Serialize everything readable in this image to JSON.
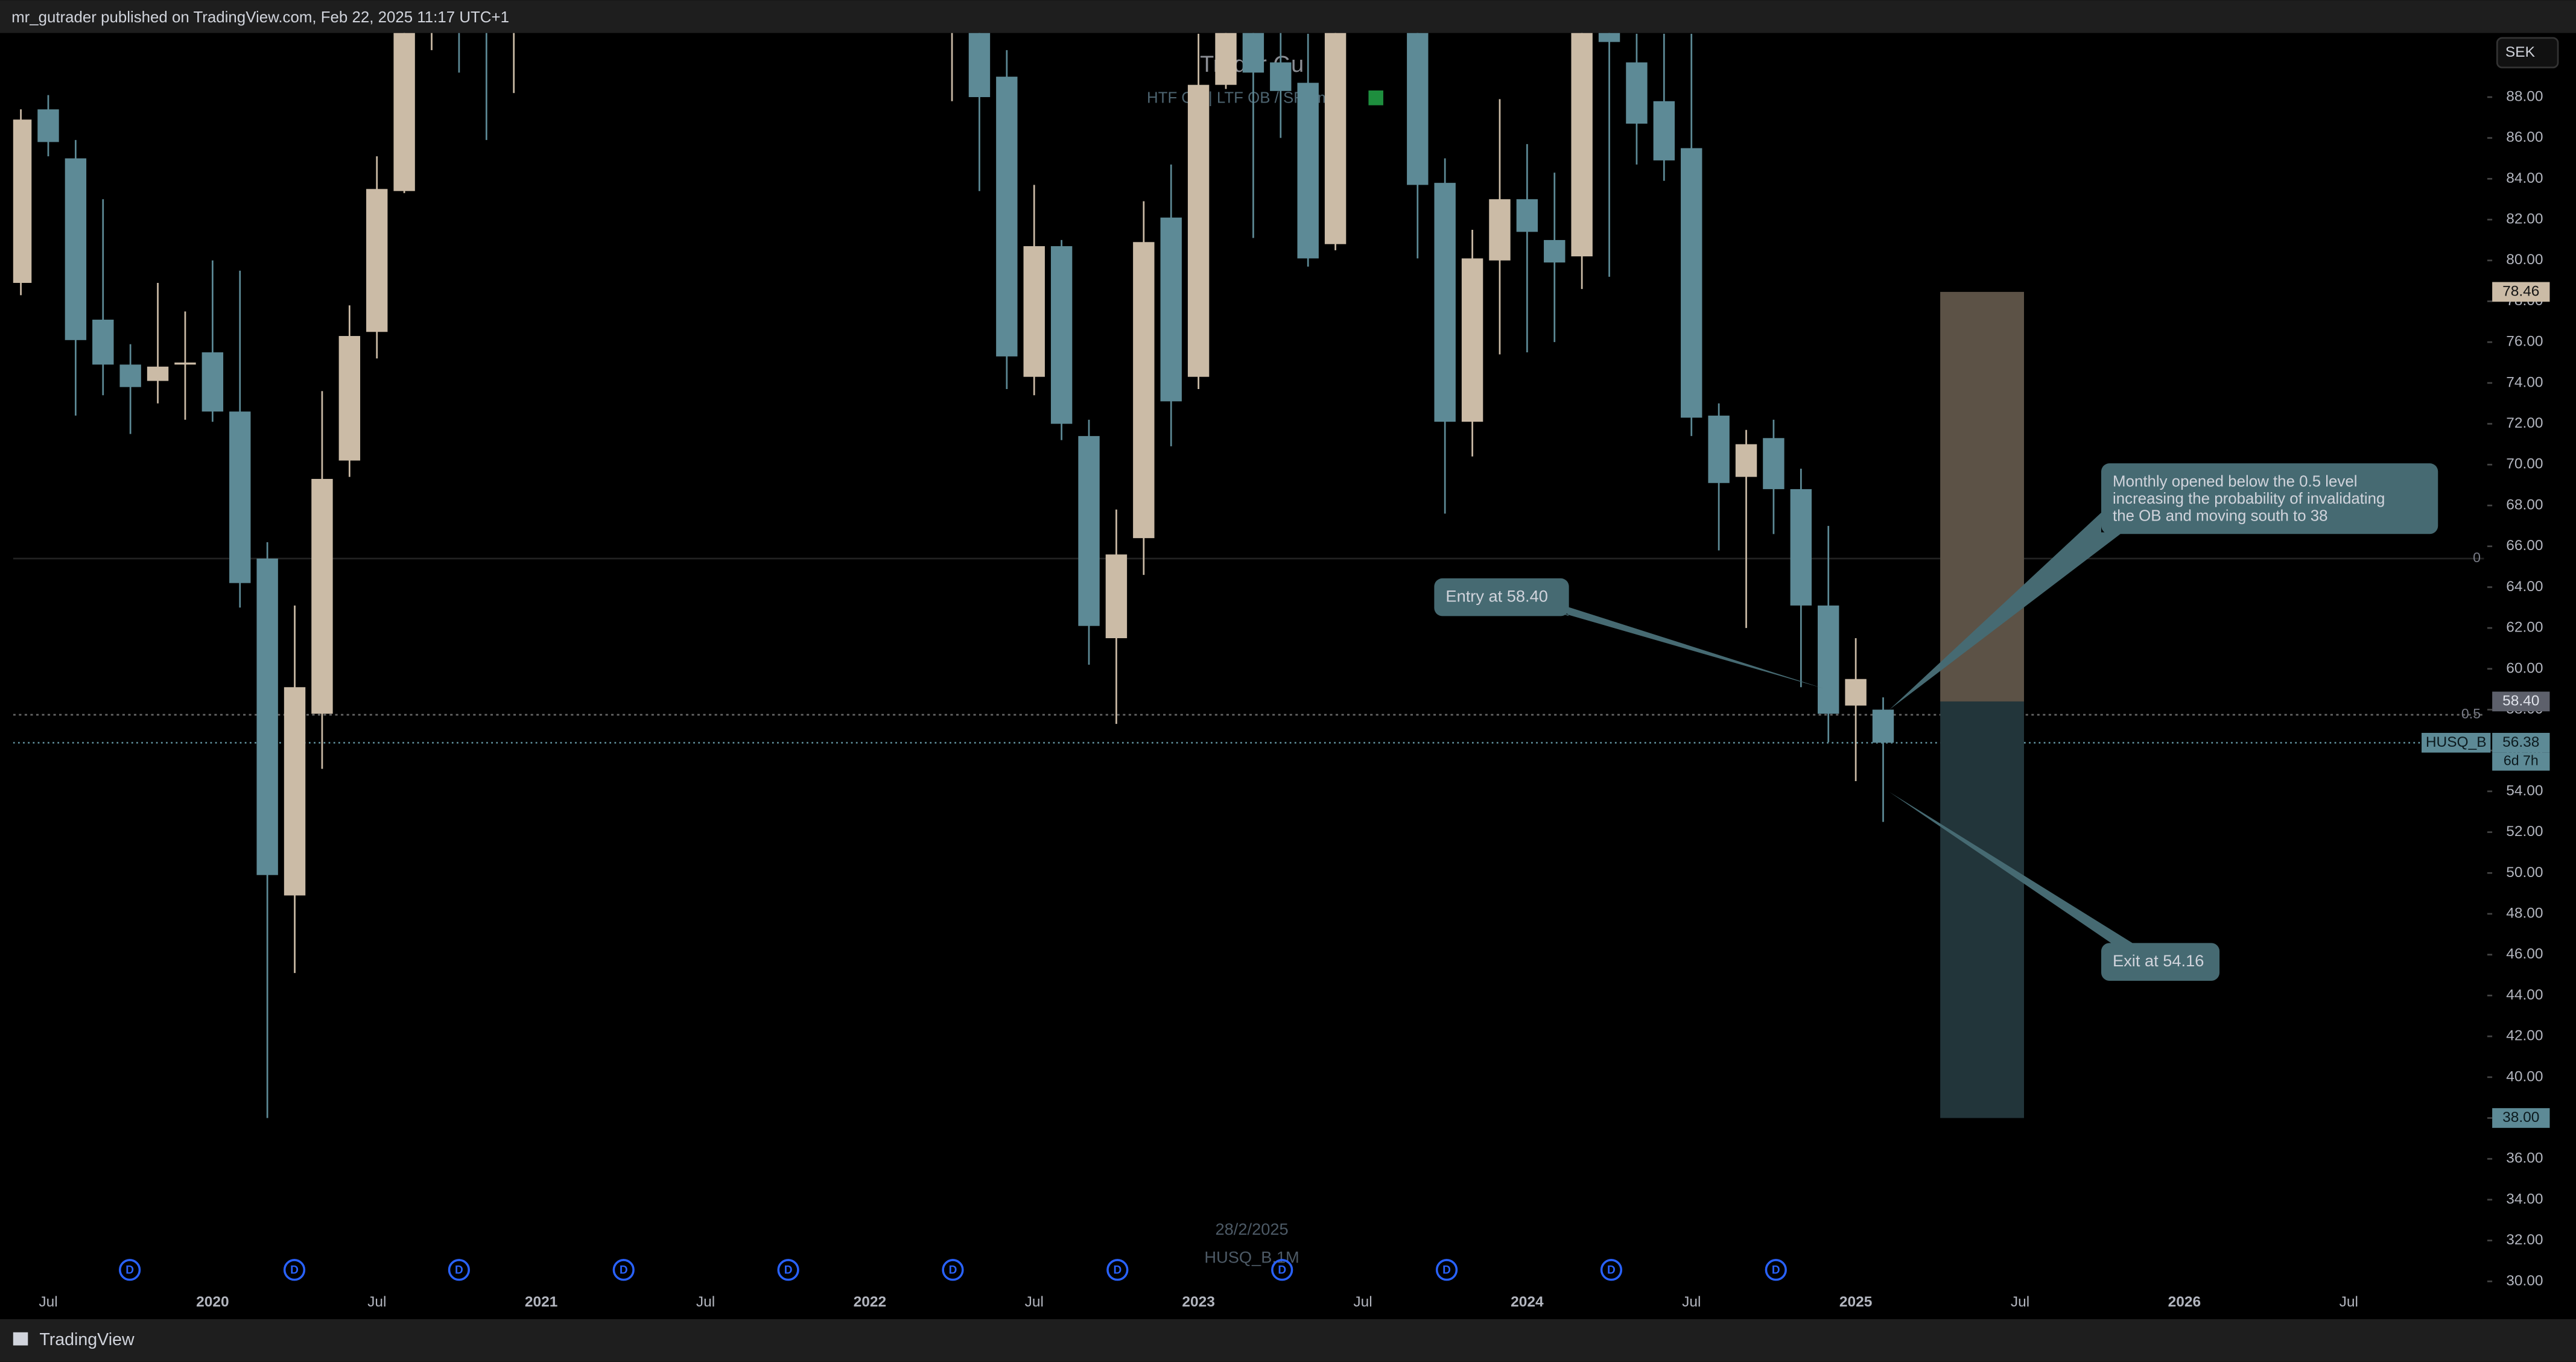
{
  "header": {
    "publisher": "mr_gutrader published on TradingView.com, Feb 22, 2025 11:17 UTC+1",
    "brand": "TradingView",
    "currency": "SEK"
  },
  "chart_data": {
    "type": "candlestick",
    "title": "Trader Gu",
    "indicator": "HTF OB | LTF OB / SFP m",
    "watermark_date": "28/2/2025",
    "watermark_symbol": "HUSQ_B,1M",
    "up_color": "#cbbba6",
    "down_color": "#5d8a96",
    "categories": [
      null,
      "Jul",
      null,
      null,
      null,
      null,
      null,
      "2020",
      null,
      null,
      null,
      null,
      null,
      "Jul",
      null,
      null,
      null,
      null,
      null,
      "2021",
      null,
      null,
      null,
      null,
      null,
      "Jul",
      null,
      null,
      null,
      null,
      null,
      "2022",
      null,
      null,
      null,
      null,
      null,
      "Jul",
      null,
      null,
      null,
      null,
      null,
      "2023",
      null,
      null,
      null,
      null,
      null,
      "Jul",
      null,
      null,
      null,
      null,
      null,
      "2024",
      null,
      null,
      null,
      null,
      null,
      "Jul",
      null,
      null,
      null,
      null,
      null,
      "2025",
      null,
      null,
      null,
      null,
      null,
      "Jul",
      null,
      null,
      null,
      null,
      null,
      "2026",
      null,
      null,
      null,
      null,
      null,
      "Jul",
      null,
      null,
      null,
      null
    ],
    "open": [
      78.9,
      87.4,
      85.0,
      77.1,
      74.9,
      74.1,
      74.9,
      75.5,
      72.6,
      65.4,
      48.9,
      57.8,
      70.2,
      76.5,
      83.4,
      94,
      94.5,
      93.5,
      92,
      null,
      null,
      null,
      null,
      null,
      null,
      null,
      null,
      null,
      null,
      null,
      null,
      null,
      null,
      null,
      94,
      93,
      89.0,
      74.3,
      80.7,
      71.4,
      61.5,
      66.4,
      82.1,
      74.3,
      88.6,
      93,
      89.7,
      88.7,
      80.8,
      null,
      null,
      93,
      83.8,
      72.1,
      80.0,
      83.0,
      81.0,
      80.2,
      93,
      89.7,
      87.8,
      85.5,
      72.4,
      69.4,
      71.3,
      68.8,
      63.1,
      58.2,
      58.0,
      null,
      null,
      null,
      null,
      null,
      null,
      null,
      null,
      null,
      null,
      null,
      null,
      null,
      null,
      null,
      null,
      null,
      null,
      null,
      null,
      null
    ],
    "high": [
      87.4,
      88.1,
      85.9,
      83.0,
      75.9,
      78.9,
      77.5,
      80.0,
      79.5,
      66.2,
      63.1,
      73.6,
      77.8,
      85.1,
      95,
      97,
      97,
      96,
      97,
      null,
      null,
      null,
      null,
      null,
      null,
      null,
      null,
      null,
      null,
      null,
      null,
      null,
      null,
      null,
      98,
      96,
      90.3,
      83.7,
      81.0,
      72.2,
      67.8,
      82.9,
      84.7,
      91.1,
      96,
      95,
      92,
      91.1,
      96,
      null,
      null,
      96,
      85.0,
      81.5,
      87.9,
      85.7,
      84.3,
      96,
      95,
      91.1,
      91.1,
      91.1,
      73.0,
      71.7,
      72.2,
      69.8,
      67.0,
      61.5,
      58.6,
      null,
      null,
      null,
      null,
      null,
      null,
      null,
      null,
      null,
      null,
      null,
      null,
      null,
      null,
      null,
      null,
      null,
      null,
      null,
      null,
      null
    ],
    "low": [
      78.3,
      85.1,
      72.4,
      73.4,
      71.5,
      73.0,
      72.2,
      72.1,
      63.0,
      38.0,
      45.1,
      55.1,
      69.4,
      75.2,
      83.3,
      90.3,
      89.2,
      85.9,
      88.2,
      null,
      null,
      null,
      null,
      null,
      null,
      null,
      null,
      null,
      null,
      null,
      null,
      null,
      null,
      null,
      87.8,
      83.4,
      73.7,
      73.4,
      71.2,
      60.2,
      57.3,
      64.6,
      70.9,
      73.7,
      88.4,
      81.1,
      86,
      79.7,
      80.5,
      null,
      null,
      80.1,
      67.6,
      70.4,
      75.4,
      75.5,
      76.0,
      78.6,
      79.2,
      84.7,
      83.9,
      71.4,
      65.8,
      62.0,
      66.6,
      59.1,
      56.4,
      54.5,
      52.5,
      null,
      null,
      null,
      null,
      null,
      null,
      null,
      null,
      null,
      null,
      null,
      null,
      null,
      null,
      null,
      null,
      null,
      null,
      null,
      null,
      null
    ],
    "close": [
      86.9,
      85.8,
      76.1,
      74.9,
      73.8,
      74.8,
      75.0,
      72.6,
      64.2,
      49.9,
      59.1,
      69.3,
      76.3,
      83.5,
      93,
      95,
      93.5,
      92,
      94,
      null,
      null,
      null,
      null,
      null,
      null,
      null,
      null,
      null,
      null,
      null,
      null,
      null,
      null,
      null,
      96,
      88.0,
      75.3,
      80.7,
      72.0,
      62.1,
      65.6,
      80.9,
      73.1,
      88.6,
      93,
      89.2,
      88.3,
      80.1,
      93,
      null,
      null,
      83.7,
      72.1,
      80.1,
      83.0,
      81.4,
      79.9,
      93,
      90.7,
      86.7,
      84.9,
      72.3,
      69.1,
      71.0,
      68.8,
      63.1,
      57.8,
      59.5,
      56.38,
      null,
      null,
      null,
      null,
      null,
      null,
      null,
      null,
      null,
      null,
      null,
      null,
      null,
      null,
      null,
      null,
      null,
      null,
      null,
      null,
      null
    ],
    "ylim": [
      28.39,
      91.14
    ],
    "yticks": [
      {
        "value": 30,
        "label": "30.00"
      },
      {
        "value": 32,
        "label": "32.00"
      },
      {
        "value": 34,
        "label": "34.00"
      },
      {
        "value": 36,
        "label": "36.00"
      },
      {
        "value": 38,
        "label": "38.00"
      },
      {
        "value": 40,
        "label": "40.00"
      },
      {
        "value": 42,
        "label": "42.00"
      },
      {
        "value": 44,
        "label": "44.00"
      },
      {
        "value": 46,
        "label": "46.00"
      },
      {
        "value": 48,
        "label": "48.00"
      },
      {
        "value": 50,
        "label": "50.00"
      },
      {
        "value": 52,
        "label": "52.00"
      },
      {
        "value": 54,
        "label": "54.00"
      },
      {
        "value": 56,
        "label": "56.00"
      },
      {
        "value": 58,
        "label": "58.00"
      },
      {
        "value": 60,
        "label": "60.00"
      },
      {
        "value": 62,
        "label": "62.00"
      },
      {
        "value": 64,
        "label": "64.00"
      },
      {
        "value": 66,
        "label": "66.00"
      },
      {
        "value": 68,
        "label": "68.00"
      },
      {
        "value": 70,
        "label": "70.00"
      },
      {
        "value": 72,
        "label": "72.00"
      },
      {
        "value": 74,
        "label": "74.00"
      },
      {
        "value": 76,
        "label": "76.00"
      },
      {
        "value": 78,
        "label": "78.00"
      },
      {
        "value": 80,
        "label": "80.00"
      },
      {
        "value": 82,
        "label": "82.00"
      },
      {
        "value": 84,
        "label": "84.00"
      },
      {
        "value": 86,
        "label": "86.00"
      },
      {
        "value": 88,
        "label": "88.00"
      }
    ],
    "fib_levels": [
      {
        "ratio": 0,
        "price": 65.4
      },
      {
        "ratio": 0.5,
        "price": 57.75
      }
    ],
    "position": {
      "target": 78.46,
      "entry": {
        "value": 58.4,
        "label": "58.40"
      },
      "stop": {
        "value": 38,
        "label": "38.00"
      }
    },
    "last_price": {
      "symbol": "HUSQ_B",
      "value": 56.38,
      "countdown": "6d 7h"
    },
    "dividend_markers": [
      "D",
      "D",
      "D",
      "D",
      "D",
      "D",
      "D",
      "D",
      "D",
      "D",
      "D"
    ],
    "annotations": {
      "entry": "Entry at 58.40",
      "exit": "Exit at 54.16",
      "note": [
        "Monthly opened below the 0.5 level",
        "increasing the probability of invalidating",
        "the OB and moving south to 38"
      ]
    }
  }
}
